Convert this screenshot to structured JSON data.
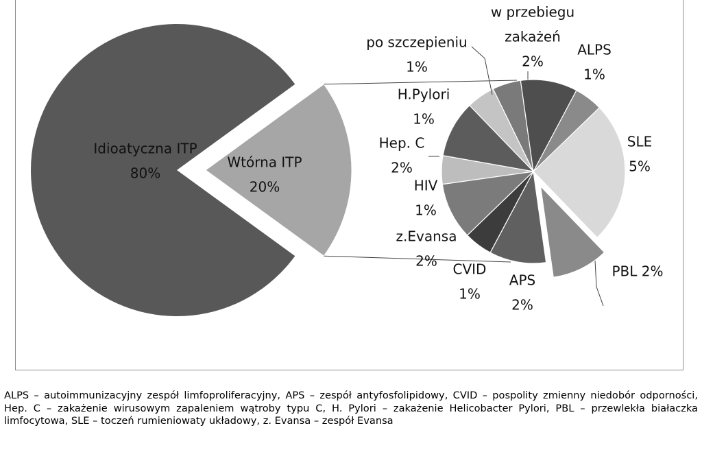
{
  "chart_data": {
    "type": "bar-of-pie",
    "main": {
      "slices": [
        {
          "label_lines": [
            "Idioatyczna ITP",
            "80%"
          ],
          "value": 80,
          "color": "#585858"
        },
        {
          "label_lines": [
            "Wtórna ITP",
            "20%"
          ],
          "value": 20,
          "color": "#a6a6a6"
        }
      ]
    },
    "secondary": {
      "slices": [
        {
          "label_lines": [
            "ALPS",
            "1%"
          ],
          "value": 1,
          "color": "#8a8a8a"
        },
        {
          "label_lines": [
            "SLE",
            "5%"
          ],
          "value": 5,
          "color": "#d9d9d9"
        },
        {
          "label_lines": [
            "PBL 2%"
          ],
          "value": 2,
          "color": "#8a8a8a"
        },
        {
          "label_lines": [
            "APS",
            "2%"
          ],
          "value": 2,
          "color": "#606060"
        },
        {
          "label_lines": [
            "CVID",
            "1%"
          ],
          "value": 1,
          "color": "#3c3c3c"
        },
        {
          "label_lines": [
            "z.Evansa",
            "2%"
          ],
          "value": 2,
          "color": "#7b7b7b"
        },
        {
          "label_lines": [
            "HIV",
            "1%"
          ],
          "value": 1,
          "color": "#bdbdbd"
        },
        {
          "label_lines": [
            "Hep. C",
            "2%"
          ],
          "value": 2,
          "color": "#5c5c5c"
        },
        {
          "label_lines": [
            "H.Pylori",
            "1%"
          ],
          "value": 1,
          "color": "#c4c4c4"
        },
        {
          "label_lines": [
            "po szczepieniu",
            "1%"
          ],
          "value": 1,
          "color": "#7a7a7a"
        },
        {
          "label_lines": [
            "w przebiegu",
            "zakażeń",
            "2%"
          ],
          "value": 2,
          "color": "#4e4e4e"
        }
      ]
    }
  },
  "footnote": "ALPS – autoimmunizacyjny zespół limfoproliferacyjny, APS – zespół antyfosfolipidowy,  CVID – pospolity zmienny niedobór odporności, Hep. C – zakażenie wirusowym zapaleniem wątroby typu C, H. Pylori – zakażenie Helicobacter Pylori,  PBL – przewlekła białaczka limfocytowa, SLE – toczeń rumieniowaty układowy, z. Evansa – zespół Evansa"
}
